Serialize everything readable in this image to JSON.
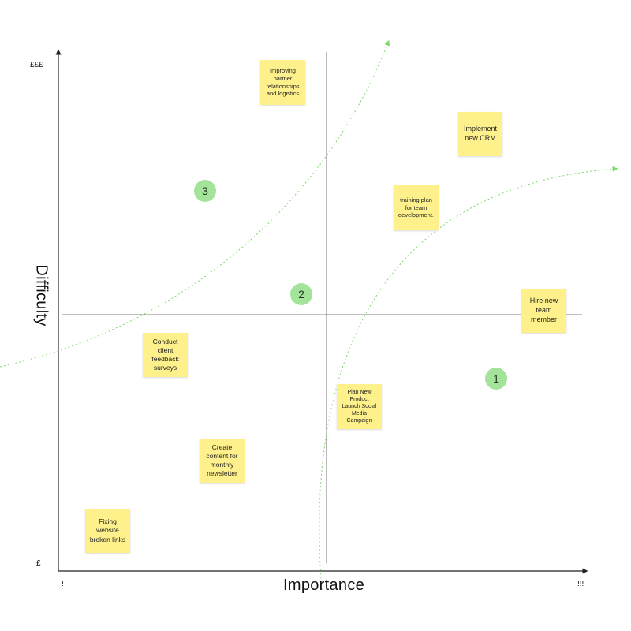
{
  "axes": {
    "x_title": "Importance",
    "y_title": "Difficulty",
    "x_min_label": "!",
    "x_max_label": "!!!",
    "y_min_label": "£",
    "y_max_label": "£££"
  },
  "colors": {
    "note": "#fef08a",
    "marker": "#a3e39a",
    "curve": "#7ed86b",
    "axis": "#222222"
  },
  "notes": [
    {
      "text": "Improving partner relationships and logistics"
    },
    {
      "text": "Implement new CRM"
    },
    {
      "text": "training plan for team development."
    },
    {
      "text": "Hire new team member"
    },
    {
      "text": "Conduct client feedback surveys"
    },
    {
      "text": "Plan New Product Launch Social Media Campaign"
    },
    {
      "text": "Create content for monthly newsletter"
    },
    {
      "text": "Fixing website broken links"
    }
  ],
  "markers": [
    {
      "label": "3"
    },
    {
      "label": "2"
    },
    {
      "label": "1"
    }
  ]
}
